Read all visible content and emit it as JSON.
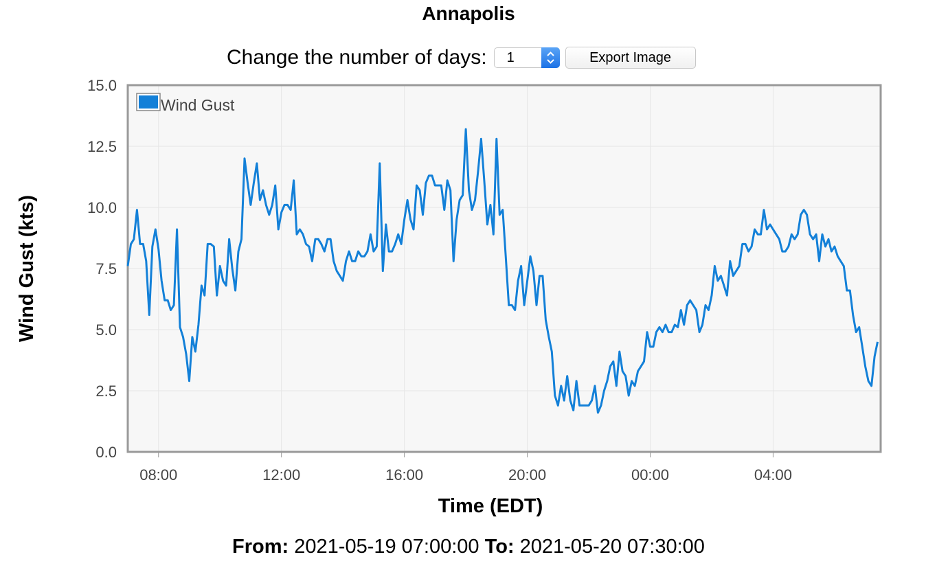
{
  "header": {
    "title": "Annapolis",
    "days_label": "Change the number of days:",
    "days_value": "1",
    "export_label": "Export Image"
  },
  "footer": {
    "from_label": "From:",
    "from_value": "2021-05-19 07:00:00",
    "to_label": "To:",
    "to_value": "2021-05-20 07:30:00"
  },
  "colors": {
    "series": "#1380d8",
    "plot_bg": "#f7f7f7",
    "plot_border": "#999999",
    "grid": "#e6e6e6"
  },
  "icons": [
    "stepper-icon"
  ],
  "chart_data": {
    "type": "line",
    "xlabel": "Time (EDT)",
    "ylabel": "Wind Gust (kts)",
    "ylim": [
      0,
      15
    ],
    "yticks": [
      "0.0",
      "2.5",
      "5.0",
      "7.5",
      "10.0",
      "12.5",
      "15.0"
    ],
    "xlim": [
      "2021-05-19 07:00",
      "2021-05-20 07:30"
    ],
    "xticks": [
      {
        "label": "08:00",
        "time": "2021-05-19 08:00"
      },
      {
        "label": "12:00",
        "time": "2021-05-19 12:00"
      },
      {
        "label": "16:00",
        "time": "2021-05-19 16:00"
      },
      {
        "label": "20:00",
        "time": "2021-05-19 20:00"
      },
      {
        "label": "00:00",
        "time": "2021-05-20 00:00"
      },
      {
        "label": "04:00",
        "time": "2021-05-20 04:00"
      }
    ],
    "grid": true,
    "legend_position": "top-left",
    "series": [
      {
        "name": "Wind Gust",
        "points": [
          [
            "2021-05-19 07:00",
            7.6
          ],
          [
            "2021-05-19 07:06",
            8.5
          ],
          [
            "2021-05-19 07:12",
            8.7
          ],
          [
            "2021-05-19 07:18",
            9.9
          ],
          [
            "2021-05-19 07:24",
            8.5
          ],
          [
            "2021-05-19 07:30",
            8.5
          ],
          [
            "2021-05-19 07:36",
            7.8
          ],
          [
            "2021-05-19 07:42",
            5.6
          ],
          [
            "2021-05-19 07:48",
            8.4
          ],
          [
            "2021-05-19 07:54",
            9.1
          ],
          [
            "2021-05-19 08:00",
            8.3
          ],
          [
            "2021-05-19 08:06",
            7.0
          ],
          [
            "2021-05-19 08:12",
            6.2
          ],
          [
            "2021-05-19 08:18",
            6.2
          ],
          [
            "2021-05-19 08:24",
            5.8
          ],
          [
            "2021-05-19 08:30",
            6.0
          ],
          [
            "2021-05-19 08:36",
            9.1
          ],
          [
            "2021-05-19 08:42",
            5.1
          ],
          [
            "2021-05-19 08:48",
            4.7
          ],
          [
            "2021-05-19 08:54",
            4.0
          ],
          [
            "2021-05-19 09:00",
            2.9
          ],
          [
            "2021-05-19 09:06",
            4.7
          ],
          [
            "2021-05-19 09:12",
            4.1
          ],
          [
            "2021-05-19 09:18",
            5.2
          ],
          [
            "2021-05-19 09:24",
            6.8
          ],
          [
            "2021-05-19 09:30",
            6.4
          ],
          [
            "2021-05-19 09:36",
            8.5
          ],
          [
            "2021-05-19 09:42",
            8.5
          ],
          [
            "2021-05-19 09:48",
            8.4
          ],
          [
            "2021-05-19 09:54",
            6.4
          ],
          [
            "2021-05-19 10:00",
            7.6
          ],
          [
            "2021-05-19 10:06",
            7.0
          ],
          [
            "2021-05-19 10:12",
            6.8
          ],
          [
            "2021-05-19 10:18",
            8.7
          ],
          [
            "2021-05-19 10:24",
            7.5
          ],
          [
            "2021-05-19 10:30",
            6.6
          ],
          [
            "2021-05-19 10:36",
            8.2
          ],
          [
            "2021-05-19 10:42",
            8.7
          ],
          [
            "2021-05-19 10:48",
            12.0
          ],
          [
            "2021-05-19 10:54",
            11.0
          ],
          [
            "2021-05-19 11:00",
            10.1
          ],
          [
            "2021-05-19 11:06",
            11.0
          ],
          [
            "2021-05-19 11:12",
            11.8
          ],
          [
            "2021-05-19 11:18",
            10.3
          ],
          [
            "2021-05-19 11:24",
            10.7
          ],
          [
            "2021-05-19 11:30",
            10.1
          ],
          [
            "2021-05-19 11:36",
            9.7
          ],
          [
            "2021-05-19 11:42",
            10.1
          ],
          [
            "2021-05-19 11:48",
            10.9
          ],
          [
            "2021-05-19 11:54",
            9.1
          ],
          [
            "2021-05-19 12:00",
            9.8
          ],
          [
            "2021-05-19 12:06",
            10.1
          ],
          [
            "2021-05-19 12:12",
            10.1
          ],
          [
            "2021-05-19 12:18",
            9.9
          ],
          [
            "2021-05-19 12:24",
            11.1
          ],
          [
            "2021-05-19 12:30",
            8.9
          ],
          [
            "2021-05-19 12:36",
            9.1
          ],
          [
            "2021-05-19 12:42",
            8.9
          ],
          [
            "2021-05-19 12:48",
            8.5
          ],
          [
            "2021-05-19 12:54",
            8.4
          ],
          [
            "2021-05-19 13:00",
            7.8
          ],
          [
            "2021-05-19 13:06",
            8.7
          ],
          [
            "2021-05-19 13:12",
            8.7
          ],
          [
            "2021-05-19 13:18",
            8.5
          ],
          [
            "2021-05-19 13:24",
            8.2
          ],
          [
            "2021-05-19 13:30",
            8.7
          ],
          [
            "2021-05-19 13:36",
            8.7
          ],
          [
            "2021-05-19 13:42",
            7.8
          ],
          [
            "2021-05-19 13:48",
            7.4
          ],
          [
            "2021-05-19 13:54",
            7.2
          ],
          [
            "2021-05-19 14:00",
            7.0
          ],
          [
            "2021-05-19 14:06",
            7.8
          ],
          [
            "2021-05-19 14:12",
            8.2
          ],
          [
            "2021-05-19 14:18",
            7.8
          ],
          [
            "2021-05-19 14:24",
            7.8
          ],
          [
            "2021-05-19 14:30",
            8.2
          ],
          [
            "2021-05-19 14:36",
            8.0
          ],
          [
            "2021-05-19 14:42",
            8.0
          ],
          [
            "2021-05-19 14:48",
            8.2
          ],
          [
            "2021-05-19 14:54",
            8.9
          ],
          [
            "2021-05-19 15:00",
            8.2
          ],
          [
            "2021-05-19 15:06",
            8.4
          ],
          [
            "2021-05-19 15:12",
            11.8
          ],
          [
            "2021-05-19 15:18",
            7.4
          ],
          [
            "2021-05-19 15:24",
            9.3
          ],
          [
            "2021-05-19 15:30",
            8.2
          ],
          [
            "2021-05-19 15:36",
            8.2
          ],
          [
            "2021-05-19 15:42",
            8.5
          ],
          [
            "2021-05-19 15:48",
            8.9
          ],
          [
            "2021-05-19 15:54",
            8.5
          ],
          [
            "2021-05-19 16:00",
            9.5
          ],
          [
            "2021-05-19 16:06",
            10.3
          ],
          [
            "2021-05-19 16:12",
            9.5
          ],
          [
            "2021-05-19 16:18",
            9.1
          ],
          [
            "2021-05-19 16:24",
            10.9
          ],
          [
            "2021-05-19 16:30",
            10.7
          ],
          [
            "2021-05-19 16:36",
            9.7
          ],
          [
            "2021-05-19 16:42",
            11.0
          ],
          [
            "2021-05-19 16:48",
            11.3
          ],
          [
            "2021-05-19 16:54",
            11.3
          ],
          [
            "2021-05-19 17:00",
            10.9
          ],
          [
            "2021-05-19 17:06",
            10.9
          ],
          [
            "2021-05-19 17:12",
            10.9
          ],
          [
            "2021-05-19 17:18",
            9.9
          ],
          [
            "2021-05-19 17:24",
            11.1
          ],
          [
            "2021-05-19 17:30",
            10.7
          ],
          [
            "2021-05-19 17:36",
            7.8
          ],
          [
            "2021-05-19 17:42",
            9.5
          ],
          [
            "2021-05-19 17:48",
            10.3
          ],
          [
            "2021-05-19 17:54",
            10.5
          ],
          [
            "2021-05-19 18:00",
            13.2
          ],
          [
            "2021-05-19 18:06",
            10.7
          ],
          [
            "2021-05-19 18:12",
            9.9
          ],
          [
            "2021-05-19 18:18",
            10.3
          ],
          [
            "2021-05-19 18:24",
            11.5
          ],
          [
            "2021-05-19 18:30",
            12.8
          ],
          [
            "2021-05-19 18:36",
            11.1
          ],
          [
            "2021-05-19 18:42",
            9.3
          ],
          [
            "2021-05-19 18:48",
            10.1
          ],
          [
            "2021-05-19 18:54",
            8.9
          ],
          [
            "2021-05-19 19:00",
            12.8
          ],
          [
            "2021-05-19 19:06",
            9.7
          ],
          [
            "2021-05-19 19:12",
            9.9
          ],
          [
            "2021-05-19 19:18",
            8.0
          ],
          [
            "2021-05-19 19:24",
            6.0
          ],
          [
            "2021-05-19 19:30",
            6.0
          ],
          [
            "2021-05-19 19:36",
            5.8
          ],
          [
            "2021-05-19 19:42",
            7.0
          ],
          [
            "2021-05-19 19:48",
            7.6
          ],
          [
            "2021-05-19 19:54",
            6.0
          ],
          [
            "2021-05-19 20:00",
            7.0
          ],
          [
            "2021-05-19 20:06",
            8.0
          ],
          [
            "2021-05-19 20:12",
            7.4
          ],
          [
            "2021-05-19 20:18",
            6.0
          ],
          [
            "2021-05-19 20:24",
            7.2
          ],
          [
            "2021-05-19 20:30",
            7.2
          ],
          [
            "2021-05-19 20:36",
            5.4
          ],
          [
            "2021-05-19 20:42",
            4.7
          ],
          [
            "2021-05-19 20:48",
            4.1
          ],
          [
            "2021-05-19 20:54",
            2.3
          ],
          [
            "2021-05-19 21:00",
            1.9
          ],
          [
            "2021-05-19 21:06",
            2.7
          ],
          [
            "2021-05-19 21:12",
            2.1
          ],
          [
            "2021-05-19 21:18",
            3.1
          ],
          [
            "2021-05-19 21:24",
            2.1
          ],
          [
            "2021-05-19 21:30",
            1.7
          ],
          [
            "2021-05-19 21:36",
            2.9
          ],
          [
            "2021-05-19 21:42",
            1.9
          ],
          [
            "2021-05-19 21:48",
            1.9
          ],
          [
            "2021-05-19 21:54",
            1.9
          ],
          [
            "2021-05-19 22:00",
            1.9
          ],
          [
            "2021-05-19 22:06",
            2.1
          ],
          [
            "2021-05-19 22:12",
            2.7
          ],
          [
            "2021-05-19 22:18",
            1.6
          ],
          [
            "2021-05-19 22:24",
            1.9
          ],
          [
            "2021-05-19 22:30",
            2.5
          ],
          [
            "2021-05-19 22:36",
            2.9
          ],
          [
            "2021-05-19 22:42",
            3.5
          ],
          [
            "2021-05-19 22:48",
            3.7
          ],
          [
            "2021-05-19 22:54",
            2.7
          ],
          [
            "2021-05-19 23:00",
            4.1
          ],
          [
            "2021-05-19 23:06",
            3.3
          ],
          [
            "2021-05-19 23:12",
            3.1
          ],
          [
            "2021-05-19 23:18",
            2.3
          ],
          [
            "2021-05-19 23:24",
            2.9
          ],
          [
            "2021-05-19 23:30",
            2.7
          ],
          [
            "2021-05-19 23:36",
            3.3
          ],
          [
            "2021-05-19 23:42",
            3.5
          ],
          [
            "2021-05-19 23:48",
            3.7
          ],
          [
            "2021-05-19 23:54",
            4.9
          ],
          [
            "2021-05-20 00:00",
            4.3
          ],
          [
            "2021-05-20 00:06",
            4.3
          ],
          [
            "2021-05-20 00:12",
            4.9
          ],
          [
            "2021-05-20 00:18",
            5.1
          ],
          [
            "2021-05-20 00:24",
            4.9
          ],
          [
            "2021-05-20 00:30",
            5.2
          ],
          [
            "2021-05-20 00:36",
            4.9
          ],
          [
            "2021-05-20 00:42",
            4.9
          ],
          [
            "2021-05-20 00:48",
            5.2
          ],
          [
            "2021-05-20 00:54",
            5.1
          ],
          [
            "2021-05-20 01:00",
            5.8
          ],
          [
            "2021-05-20 01:06",
            5.2
          ],
          [
            "2021-05-20 01:12",
            6.0
          ],
          [
            "2021-05-20 01:18",
            6.2
          ],
          [
            "2021-05-20 01:24",
            6.0
          ],
          [
            "2021-05-20 01:30",
            5.8
          ],
          [
            "2021-05-20 01:36",
            4.9
          ],
          [
            "2021-05-20 01:42",
            5.2
          ],
          [
            "2021-05-20 01:48",
            6.0
          ],
          [
            "2021-05-20 01:54",
            5.8
          ],
          [
            "2021-05-20 02:00",
            6.4
          ],
          [
            "2021-05-20 02:06",
            7.6
          ],
          [
            "2021-05-20 02:12",
            7.0
          ],
          [
            "2021-05-20 02:18",
            7.2
          ],
          [
            "2021-05-20 02:24",
            6.8
          ],
          [
            "2021-05-20 02:30",
            6.4
          ],
          [
            "2021-05-20 02:36",
            7.8
          ],
          [
            "2021-05-20 02:42",
            7.2
          ],
          [
            "2021-05-20 02:48",
            7.4
          ],
          [
            "2021-05-20 02:54",
            7.6
          ],
          [
            "2021-05-20 03:00",
            8.5
          ],
          [
            "2021-05-20 03:06",
            8.5
          ],
          [
            "2021-05-20 03:12",
            8.2
          ],
          [
            "2021-05-20 03:18",
            8.4
          ],
          [
            "2021-05-20 03:24",
            9.1
          ],
          [
            "2021-05-20 03:30",
            8.9
          ],
          [
            "2021-05-20 03:36",
            8.9
          ],
          [
            "2021-05-20 03:42",
            9.9
          ],
          [
            "2021-05-20 03:48",
            9.1
          ],
          [
            "2021-05-20 03:54",
            9.3
          ],
          [
            "2021-05-20 04:00",
            9.1
          ],
          [
            "2021-05-20 04:06",
            8.9
          ],
          [
            "2021-05-20 04:12",
            8.7
          ],
          [
            "2021-05-20 04:18",
            8.2
          ],
          [
            "2021-05-20 04:24",
            8.2
          ],
          [
            "2021-05-20 04:30",
            8.4
          ],
          [
            "2021-05-20 04:36",
            8.9
          ],
          [
            "2021-05-20 04:42",
            8.7
          ],
          [
            "2021-05-20 04:48",
            8.9
          ],
          [
            "2021-05-20 04:54",
            9.7
          ],
          [
            "2021-05-20 05:00",
            9.9
          ],
          [
            "2021-05-20 05:06",
            9.7
          ],
          [
            "2021-05-20 05:12",
            8.9
          ],
          [
            "2021-05-20 05:18",
            8.7
          ],
          [
            "2021-05-20 05:24",
            8.9
          ],
          [
            "2021-05-20 05:30",
            7.8
          ],
          [
            "2021-05-20 05:36",
            8.9
          ],
          [
            "2021-05-20 05:42",
            8.4
          ],
          [
            "2021-05-20 05:48",
            8.7
          ],
          [
            "2021-05-20 05:54",
            8.2
          ],
          [
            "2021-05-20 06:00",
            8.4
          ],
          [
            "2021-05-20 06:06",
            8.0
          ],
          [
            "2021-05-20 06:12",
            7.8
          ],
          [
            "2021-05-20 06:18",
            7.6
          ],
          [
            "2021-05-20 06:24",
            6.6
          ],
          [
            "2021-05-20 06:30",
            6.6
          ],
          [
            "2021-05-20 06:36",
            5.6
          ],
          [
            "2021-05-20 06:42",
            4.9
          ],
          [
            "2021-05-20 06:48",
            5.1
          ],
          [
            "2021-05-20 06:54",
            4.3
          ],
          [
            "2021-05-20 07:00",
            3.5
          ],
          [
            "2021-05-20 07:06",
            2.9
          ],
          [
            "2021-05-20 07:12",
            2.7
          ],
          [
            "2021-05-20 07:18",
            3.9
          ],
          [
            "2021-05-20 07:24",
            4.5
          ]
        ]
      }
    ]
  }
}
